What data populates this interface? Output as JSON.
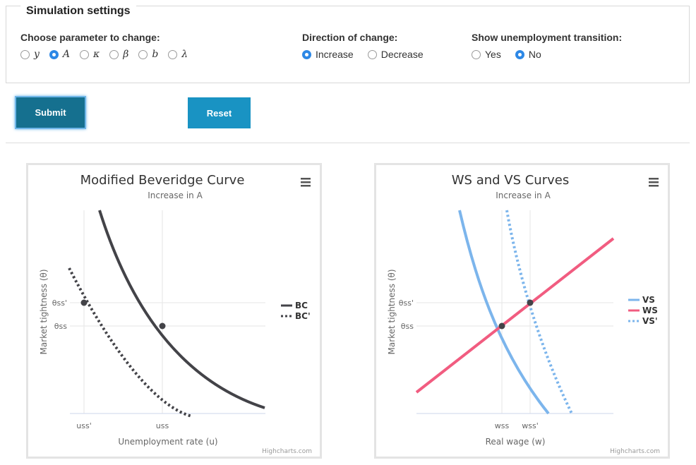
{
  "settings": {
    "legend": "Simulation settings",
    "parameter_label": "Choose parameter to change:",
    "parameters": [
      {
        "symbol": "y",
        "checked": false
      },
      {
        "symbol": "A",
        "checked": true
      },
      {
        "symbol": "κ",
        "checked": false
      },
      {
        "symbol": "β",
        "checked": false
      },
      {
        "symbol": "b",
        "checked": false
      },
      {
        "symbol": "λ",
        "checked": false
      }
    ],
    "direction_label": "Direction of change:",
    "directions": [
      {
        "label": "Increase",
        "checked": true
      },
      {
        "label": "Decrease",
        "checked": false
      }
    ],
    "transition_label": "Show unemployment transition:",
    "transitions": [
      {
        "label": "Yes",
        "checked": false
      },
      {
        "label": "No",
        "checked": true
      }
    ]
  },
  "buttons": {
    "submit": "Submit",
    "reset": "Reset"
  },
  "colors": {
    "bc": "#434348",
    "vs": "#7cb5ec",
    "ws": "#f15c80",
    "submit": "#15708f",
    "reset": "#1993c3",
    "radio": "#2d88e6"
  },
  "credits": "Highcharts.com",
  "chart_data": [
    {
      "type": "line",
      "title": "Modified Beveridge Curve",
      "subtitle": "Increase in A",
      "xlabel": "Unemployment rate (u)",
      "ylabel": "Market tightness (θ)",
      "x_ticks": [
        "uss'",
        "uss"
      ],
      "y_ticks": [
        "θss'",
        "θss"
      ],
      "series": [
        {
          "name": "BC",
          "style": "solid"
        },
        {
          "name": "BC'",
          "style": "dotted"
        }
      ],
      "points": [
        {
          "series": "BC",
          "label": "(uss, θss)"
        },
        {
          "series": "BC'",
          "label": "(uss', θss')"
        }
      ]
    },
    {
      "type": "line",
      "title": "WS and VS Curves",
      "subtitle": "Increase in A",
      "xlabel": "Real wage (w)",
      "ylabel": "Market tightness (θ)",
      "x_ticks": [
        "wss",
        "wss'"
      ],
      "y_ticks": [
        "θss'",
        "θss"
      ],
      "series": [
        {
          "name": "VS",
          "style": "solid"
        },
        {
          "name": "WS",
          "style": "solid"
        },
        {
          "name": "VS'",
          "style": "dotted"
        }
      ]
    }
  ]
}
